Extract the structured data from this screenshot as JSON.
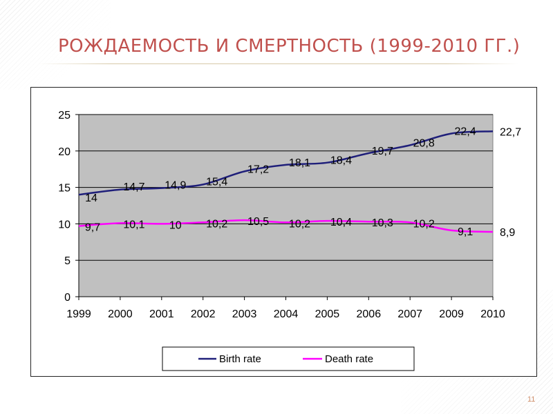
{
  "slide": {
    "title": "РОЖДАЕМОСТЬ И СМЕРТНОСТЬ (1999-2010 ГГ.)",
    "page_number": "11"
  },
  "chart_data": {
    "type": "line",
    "categories": [
      "1999",
      "2000",
      "2001",
      "2002",
      "2003",
      "2004",
      "2005",
      "2006",
      "2007",
      "2009",
      "2010"
    ],
    "ylim": [
      0,
      25
    ],
    "yticks": [
      0,
      5,
      10,
      15,
      20,
      25
    ],
    "grid": true,
    "legend_position": "bottom",
    "plot_background": "#c0c0c0",
    "series": [
      {
        "name": "Birth rate",
        "color": "#1f1f7a",
        "values": [
          14,
          14.7,
          14.9,
          15.4,
          17.2,
          18.1,
          18.4,
          19.7,
          20.8,
          22.4,
          22.7
        ],
        "labels": [
          "14",
          "14,7",
          "14,9",
          "15,4",
          "17,2",
          "18,1",
          "18,4",
          "19,7",
          "20,8",
          "22,4",
          "22,7"
        ]
      },
      {
        "name": "Death rate",
        "color": "#ff00ff",
        "values": [
          9.7,
          10.1,
          10,
          10.2,
          10.5,
          10.2,
          10.4,
          10.3,
          10.2,
          9.1,
          8.9
        ],
        "labels": [
          "9,7",
          "10,1",
          "10",
          "10,2",
          "10,5",
          "10,2",
          "10,4",
          "10,3",
          "10,2",
          "9,1",
          "8,9"
        ]
      }
    ]
  }
}
